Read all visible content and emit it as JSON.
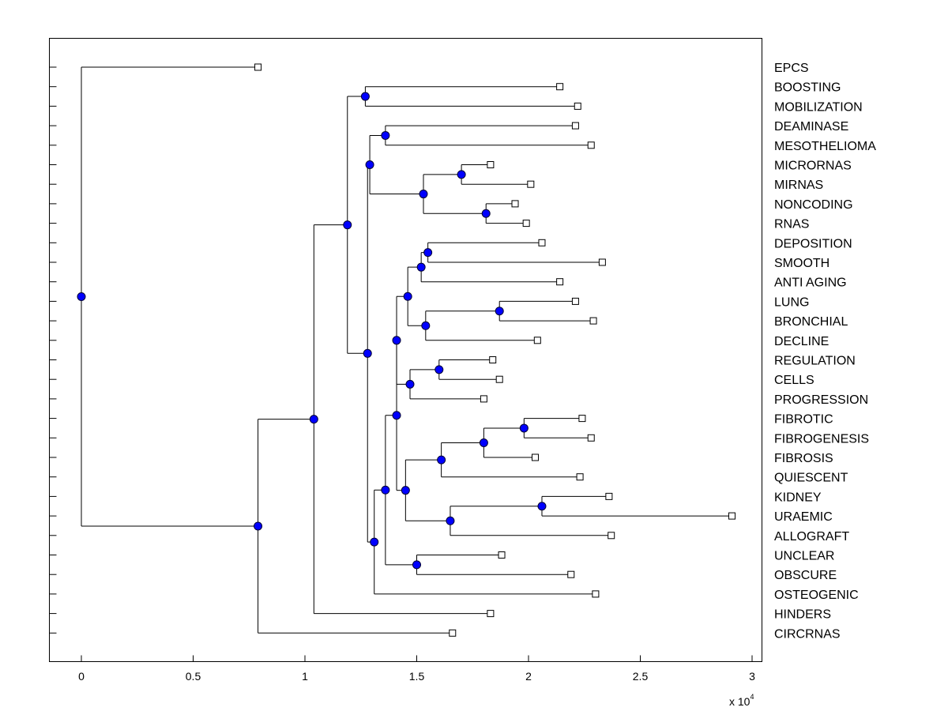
{
  "chart_data": {
    "type": "dendrogram",
    "orientation": "horizontal",
    "title": "",
    "xlabel": "",
    "ylabel": "",
    "x_multiplier": "x 10",
    "x_multiplier_exponent": "4",
    "xlim": [
      -0.14,
      3.05
    ],
    "xticks": [
      0,
      0.5,
      1,
      1.5,
      2,
      2.5,
      3
    ],
    "xtick_labels": [
      "0",
      "0.5",
      "1",
      "1.5",
      "2",
      "2.5",
      "3"
    ],
    "leaf_labels": [
      "EPCS",
      "BOOSTING",
      "MOBILIZATION",
      "DEAMINASE",
      "MESOTHELIOMA",
      "MICRORNAS",
      "MIRNAS",
      "NONCODING",
      "RNAS",
      "DEPOSITION",
      "SMOOTH",
      "ANTI AGING",
      "LUNG",
      "BRONCHIAL",
      "DECLINE",
      "REGULATION",
      "CELLS",
      "PROGRESSION",
      "FIBROTIC",
      "FIBROGENESIS",
      "FIBROSIS",
      "QUIESCENT",
      "KIDNEY",
      "URAEMIC",
      "ALLOGRAFT",
      "UNCLEAR",
      "OBSCURE",
      "OSTEOGENIC",
      "HINDERS",
      "CIRCRNAS"
    ],
    "leaf_values": [
      0.79,
      2.14,
      2.22,
      2.21,
      2.28,
      1.83,
      2.01,
      1.94,
      1.99,
      2.06,
      2.33,
      2.14,
      2.21,
      2.29,
      2.04,
      1.84,
      1.87,
      1.8,
      2.24,
      2.28,
      2.03,
      2.23,
      2.36,
      2.91,
      2.37,
      1.88,
      2.19,
      2.3,
      1.83,
      1.66
    ],
    "internal_nodes": [
      {
        "id": "root",
        "x": 0.0,
        "children": [
          "L0",
          "n_cbig"
        ]
      },
      {
        "id": "n_bm",
        "x": 1.27,
        "children": [
          "L1",
          "L2"
        ]
      },
      {
        "id": "n_dm",
        "x": 1.36,
        "children": [
          "L3",
          "L4"
        ]
      },
      {
        "id": "n_mm",
        "x": 1.7,
        "children": [
          "L5",
          "L6"
        ]
      },
      {
        "id": "n_nr",
        "x": 1.81,
        "children": [
          "L7",
          "L8"
        ]
      },
      {
        "id": "n_micro",
        "x": 1.53,
        "children": [
          "n_mm",
          "n_nr"
        ]
      },
      {
        "id": "n_a1",
        "x": 1.29,
        "children": [
          "n_dm",
          "n_micro"
        ]
      },
      {
        "id": "n_ds",
        "x": 1.55,
        "children": [
          "L9",
          "L10"
        ]
      },
      {
        "id": "n_dsa",
        "x": 1.52,
        "children": [
          "n_ds",
          "L11"
        ]
      },
      {
        "id": "n_lb",
        "x": 1.87,
        "children": [
          "L12",
          "L13"
        ]
      },
      {
        "id": "n_lbd",
        "x": 1.54,
        "children": [
          "n_lb",
          "L14"
        ]
      },
      {
        "id": "n_dl",
        "x": 1.46,
        "children": [
          "n_dsa",
          "n_lbd"
        ]
      },
      {
        "id": "n_rc",
        "x": 1.6,
        "children": [
          "L15",
          "L16"
        ]
      },
      {
        "id": "n_rcp",
        "x": 1.47,
        "children": [
          "n_rc",
          "L17"
        ]
      },
      {
        "id": "n_lr",
        "x": 1.41,
        "children": [
          "n_dl",
          "n_rcp"
        ]
      },
      {
        "id": "n_ff",
        "x": 1.98,
        "children": [
          "L18",
          "L19"
        ]
      },
      {
        "id": "n_fff",
        "x": 1.8,
        "children": [
          "n_ff",
          "L20"
        ]
      },
      {
        "id": "n_fq",
        "x": 1.61,
        "children": [
          "n_fff",
          "L21"
        ]
      },
      {
        "id": "n_ku",
        "x": 2.06,
        "children": [
          "L22",
          "L23"
        ]
      },
      {
        "id": "n_kua",
        "x": 1.65,
        "children": [
          "n_ku",
          "L24"
        ]
      },
      {
        "id": "n_fk",
        "x": 1.45,
        "children": [
          "n_fq",
          "n_kua"
        ]
      },
      {
        "id": "n_big",
        "x": 1.41,
        "children": [
          "n_lr",
          "n_fk"
        ]
      },
      {
        "id": "n_uo",
        "x": 1.5,
        "children": [
          "L25",
          "L26"
        ]
      },
      {
        "id": "n_bu",
        "x": 1.36,
        "children": [
          "n_big",
          "n_uo"
        ]
      },
      {
        "id": "n_buo",
        "x": 1.31,
        "children": [
          "n_bu",
          "L27"
        ]
      },
      {
        "id": "n_a2",
        "x": 1.28,
        "children": [
          "n_a1",
          "n_buo"
        ]
      },
      {
        "id": "n_top",
        "x": 1.19,
        "children": [
          "n_bm",
          "n_a2"
        ]
      },
      {
        "id": "n_chin",
        "x": 1.04,
        "children": [
          "n_top",
          "L28"
        ]
      },
      {
        "id": "n_cbig",
        "x": 0.79,
        "children": [
          "n_chin",
          "L29"
        ]
      }
    ],
    "colors": {
      "axis": "#000000",
      "line": "#000000",
      "node_fill": "#0000ff",
      "node_stroke": "#000033",
      "leaf_fill": "#ffffff"
    }
  }
}
